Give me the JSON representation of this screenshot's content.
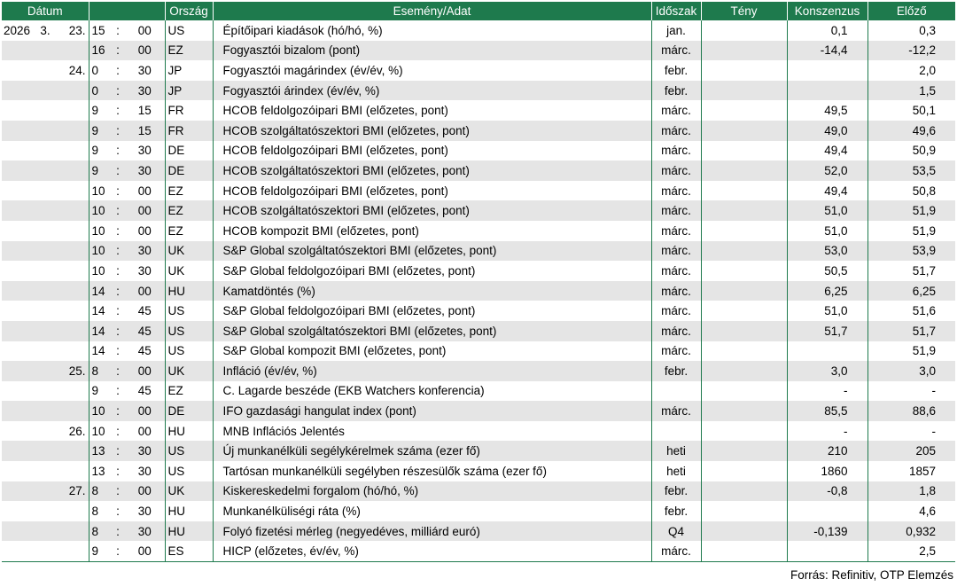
{
  "headers": {
    "datum": "Dátum",
    "orszag": "Ország",
    "esemeny": "Esemény/Adat",
    "idoszak": "Időszak",
    "teny": "Tény",
    "konszenzus": "Konszenzus",
    "elozo": "Előző"
  },
  "rows": [
    {
      "year": "2026",
      "month": "3.",
      "day": "23.",
      "hour": "15",
      "min": "00",
      "country": "US",
      "event": "Építőipari kiadások (hó/hó, %)",
      "period": "jan.",
      "actual": "",
      "consensus": "0,1",
      "previous": "0,3"
    },
    {
      "year": "",
      "month": "",
      "day": "",
      "hour": "16",
      "min": "00",
      "country": "EZ",
      "event": "Fogyasztói bizalom (pont)",
      "period": "márc.",
      "actual": "",
      "consensus": "-14,4",
      "previous": "-12,2"
    },
    {
      "year": "",
      "month": "",
      "day": "24.",
      "hour": "0",
      "min": "30",
      "country": "JP",
      "event": "Fogyasztói magárindex (év/év, %)",
      "period": "febr.",
      "actual": "",
      "consensus": "",
      "previous": "2,0"
    },
    {
      "year": "",
      "month": "",
      "day": "",
      "hour": "0",
      "min": "30",
      "country": "JP",
      "event": "Fogyasztói árindex (év/év, %)",
      "period": "febr.",
      "actual": "",
      "consensus": "",
      "previous": "1,5"
    },
    {
      "year": "",
      "month": "",
      "day": "",
      "hour": "9",
      "min": "15",
      "country": "FR",
      "event": "HCOB feldolgozóipari BMI (előzetes, pont)",
      "period": "márc.",
      "actual": "",
      "consensus": "49,5",
      "previous": "50,1"
    },
    {
      "year": "",
      "month": "",
      "day": "",
      "hour": "9",
      "min": "15",
      "country": "FR",
      "event": "HCOB szolgáltatószektori BMI (előzetes, pont)",
      "period": "márc.",
      "actual": "",
      "consensus": "49,0",
      "previous": "49,6"
    },
    {
      "year": "",
      "month": "",
      "day": "",
      "hour": "9",
      "min": "30",
      "country": "DE",
      "event": "HCOB feldolgozóipari BMI (előzetes, pont)",
      "period": "márc.",
      "actual": "",
      "consensus": "49,4",
      "previous": "50,9"
    },
    {
      "year": "",
      "month": "",
      "day": "",
      "hour": "9",
      "min": "30",
      "country": "DE",
      "event": "HCOB szolgáltatószektori BMI (előzetes, pont)",
      "period": "márc.",
      "actual": "",
      "consensus": "52,0",
      "previous": "53,5"
    },
    {
      "year": "",
      "month": "",
      "day": "",
      "hour": "10",
      "min": "00",
      "country": "EZ",
      "event": "HCOB feldolgozóipari BMI (előzetes, pont)",
      "period": "márc.",
      "actual": "",
      "consensus": "49,4",
      "previous": "50,8"
    },
    {
      "year": "",
      "month": "",
      "day": "",
      "hour": "10",
      "min": "00",
      "country": "EZ",
      "event": "HCOB szolgáltatószektori BMI (előzetes, pont)",
      "period": "márc.",
      "actual": "",
      "consensus": "51,0",
      "previous": "51,9"
    },
    {
      "year": "",
      "month": "",
      "day": "",
      "hour": "10",
      "min": "00",
      "country": "EZ",
      "event": "HCOB kompozit BMI (előzetes, pont)",
      "period": "márc.",
      "actual": "",
      "consensus": "51,0",
      "previous": "51,9"
    },
    {
      "year": "",
      "month": "",
      "day": "",
      "hour": "10",
      "min": "30",
      "country": "UK",
      "event": "S&P Global szolgáltatószektori BMI (előzetes, pont)",
      "period": "márc.",
      "actual": "",
      "consensus": "53,0",
      "previous": "53,9"
    },
    {
      "year": "",
      "month": "",
      "day": "",
      "hour": "10",
      "min": "30",
      "country": "UK",
      "event": "S&P Global feldolgozóipari BMI (előzetes, pont)",
      "period": "márc.",
      "actual": "",
      "consensus": "50,5",
      "previous": "51,7"
    },
    {
      "year": "",
      "month": "",
      "day": "",
      "hour": "14",
      "min": "00",
      "country": "HU",
      "event": "Kamatdöntés (%)",
      "period": "márc.",
      "actual": "",
      "consensus": "6,25",
      "previous": "6,25"
    },
    {
      "year": "",
      "month": "",
      "day": "",
      "hour": "14",
      "min": "45",
      "country": "US",
      "event": "S&P Global feldolgozóipari BMI (előzetes, pont)",
      "period": "márc.",
      "actual": "",
      "consensus": "51,0",
      "previous": "51,6"
    },
    {
      "year": "",
      "month": "",
      "day": "",
      "hour": "14",
      "min": "45",
      "country": "US",
      "event": "S&P Global szolgáltatószektori BMI (előzetes, pont)",
      "period": "márc.",
      "actual": "",
      "consensus": "51,7",
      "previous": "51,7"
    },
    {
      "year": "",
      "month": "",
      "day": "",
      "hour": "14",
      "min": "45",
      "country": "US",
      "event": "S&P Global kompozit BMI (előzetes, pont)",
      "period": "márc.",
      "actual": "",
      "consensus": "",
      "previous": "51,9"
    },
    {
      "year": "",
      "month": "",
      "day": "25.",
      "hour": "8",
      "min": "00",
      "country": "UK",
      "event": "Infláció (év/év, %)",
      "period": "febr.",
      "actual": "",
      "consensus": "3,0",
      "previous": "3,0"
    },
    {
      "year": "",
      "month": "",
      "day": "",
      "hour": "9",
      "min": "45",
      "country": "EZ",
      "event": "C. Lagarde beszéde (EKB Watchers konferencia)",
      "period": "",
      "actual": "",
      "consensus": "-",
      "previous": "-"
    },
    {
      "year": "",
      "month": "",
      "day": "",
      "hour": "10",
      "min": "00",
      "country": "DE",
      "event": "IFO gazdasági hangulat index (pont)",
      "period": "márc.",
      "actual": "",
      "consensus": "85,5",
      "previous": "88,6"
    },
    {
      "year": "",
      "month": "",
      "day": "26.",
      "hour": "10",
      "min": "00",
      "country": "HU",
      "event": "MNB Inflációs Jelentés",
      "period": "",
      "actual": "",
      "consensus": "-",
      "previous": "-"
    },
    {
      "year": "",
      "month": "",
      "day": "",
      "hour": "13",
      "min": "30",
      "country": "US",
      "event": "Új munkanélküli segélykérelmek száma (ezer fő)",
      "period": "heti",
      "actual": "",
      "consensus": "210",
      "previous": "205"
    },
    {
      "year": "",
      "month": "",
      "day": "",
      "hour": "13",
      "min": "30",
      "country": "US",
      "event": "Tartósan munkanélküli segélyben részesülők száma (ezer fő)",
      "period": "heti",
      "actual": "",
      "consensus": "1860",
      "previous": "1857"
    },
    {
      "year": "",
      "month": "",
      "day": "27.",
      "hour": "8",
      "min": "00",
      "country": "UK",
      "event": "Kiskereskedelmi forgalom (hó/hó, %)",
      "period": "febr.",
      "actual": "",
      "consensus": "-0,8",
      "previous": "1,8"
    },
    {
      "year": "",
      "month": "",
      "day": "",
      "hour": "8",
      "min": "30",
      "country": "HU",
      "event": "Munkanélküliségi ráta (%)",
      "period": "febr.",
      "actual": "",
      "consensus": "",
      "previous": "4,6"
    },
    {
      "year": "",
      "month": "",
      "day": "",
      "hour": "8",
      "min": "30",
      "country": "HU",
      "event": "Folyó fizetési mérleg (negyedéves, milliárd euró)",
      "period": "Q4",
      "actual": "",
      "consensus": "-0,139",
      "previous": "0,932"
    },
    {
      "year": "",
      "month": "",
      "day": "",
      "hour": "9",
      "min": "00",
      "country": "ES",
      "event": "HICP (előzetes, év/év, %)",
      "period": "márc.",
      "actual": "",
      "consensus": "",
      "previous": "2,5"
    }
  ],
  "colon": ":",
  "source": "Forrás: Refinitiv, OTP Elemzés",
  "colors": {
    "header_bg": "#1e7a4d",
    "alt_row": "#e5e5e5",
    "border": "#1e7a4d"
  }
}
